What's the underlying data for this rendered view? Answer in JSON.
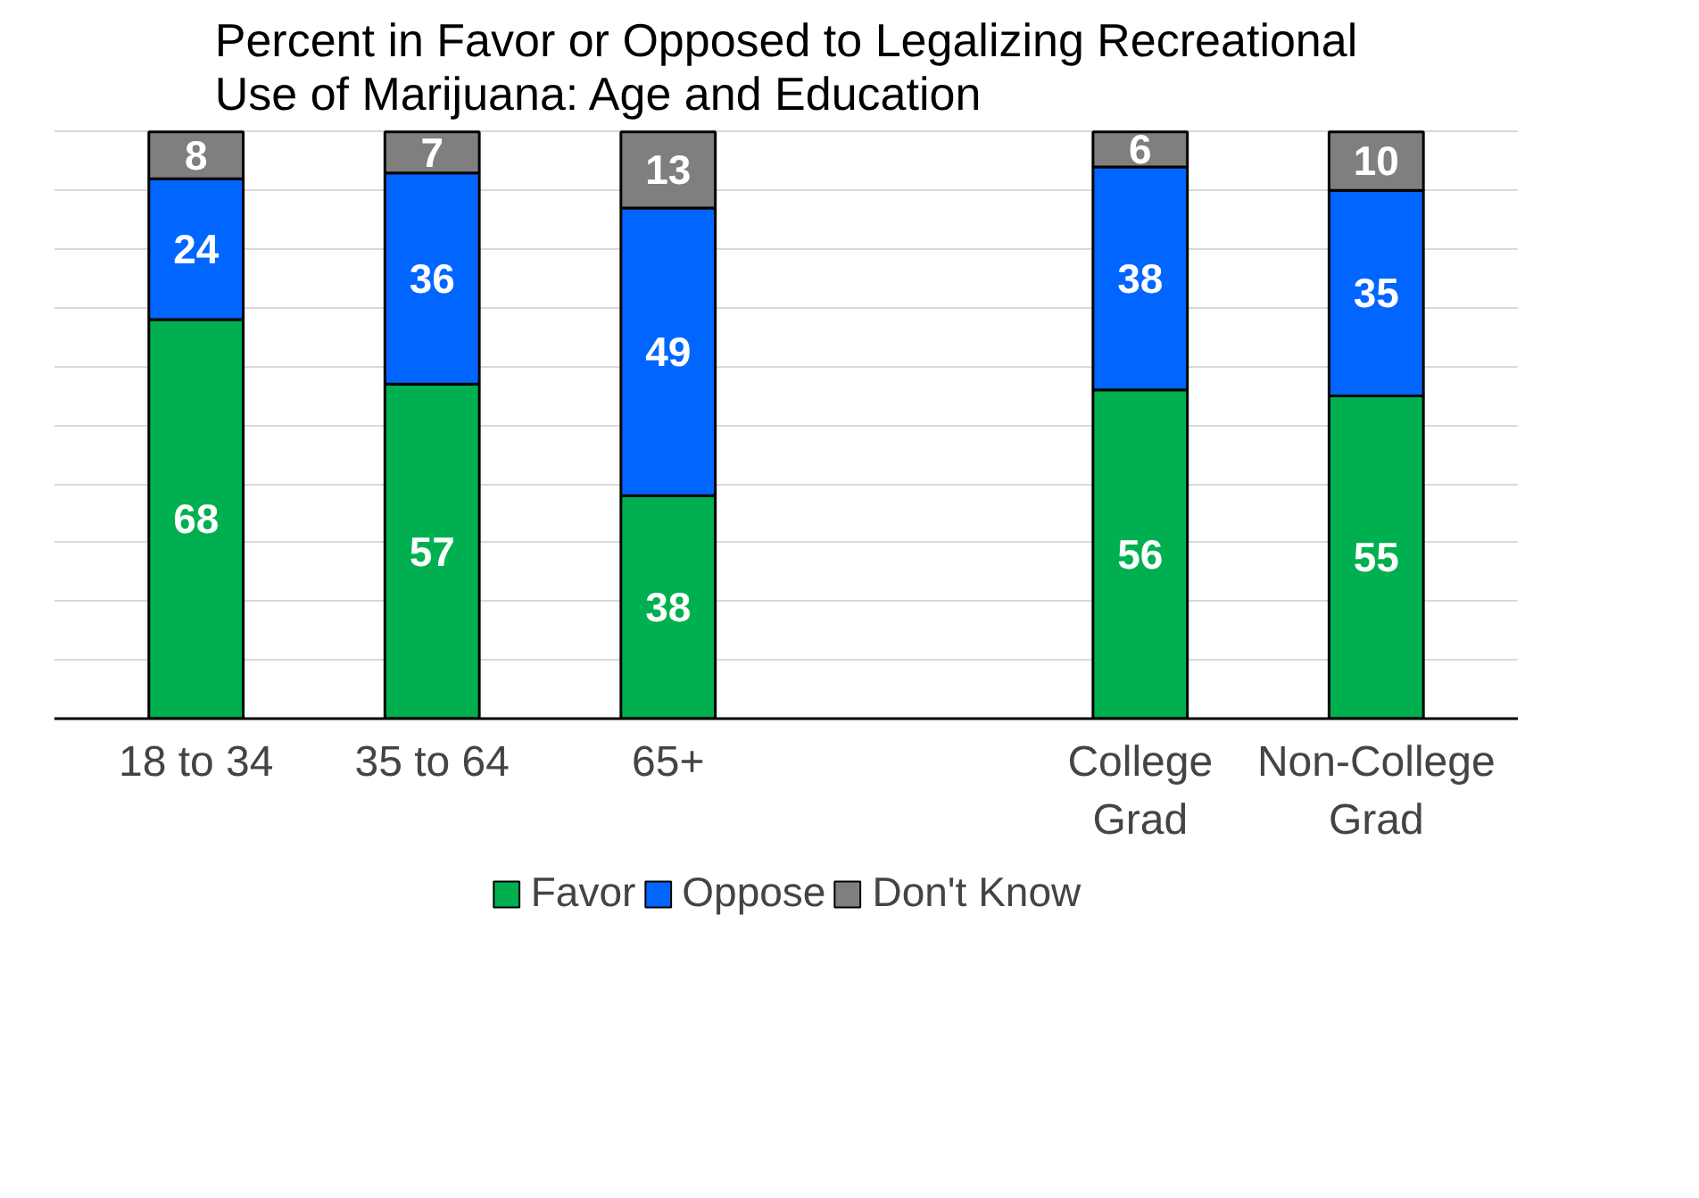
{
  "chart_data": {
    "type": "bar",
    "stacked": true,
    "title": "Percent in Favor or Opposed to Legalizing Recreational Use of Marijuana: Age and Education",
    "categories": [
      "18 to 34",
      "35 to 64",
      "65+",
      null,
      "College Grad",
      "Non-College Grad"
    ],
    "series": [
      {
        "name": "Favor",
        "color": "#00b050",
        "values": [
          68,
          57,
          38,
          null,
          56,
          55
        ]
      },
      {
        "name": "Oppose",
        "color": "#0066ff",
        "values": [
          24,
          36,
          49,
          null,
          38,
          35
        ]
      },
      {
        "name": "Don't Know",
        "color": "#7f7f7f",
        "values": [
          8,
          7,
          13,
          null,
          6,
          10
        ]
      }
    ],
    "ylim": [
      0,
      100
    ],
    "yticks": [
      {
        "value": 0,
        "label": null
      },
      {
        "value": 10,
        "label": null
      },
      {
        "value": 20,
        "label": null
      },
      {
        "value": 30,
        "label": null
      },
      {
        "value": 40,
        "label": null
      },
      {
        "value": 50,
        "label": null
      },
      {
        "value": 60,
        "label": null
      },
      {
        "value": 70,
        "label": null
      },
      {
        "value": 80,
        "label": null
      },
      {
        "value": 90,
        "label": null
      },
      {
        "value": 100,
        "label": null
      }
    ],
    "tick_labels": "x",
    "grid": "y",
    "legend": "bottom",
    "data_labels": true
  }
}
